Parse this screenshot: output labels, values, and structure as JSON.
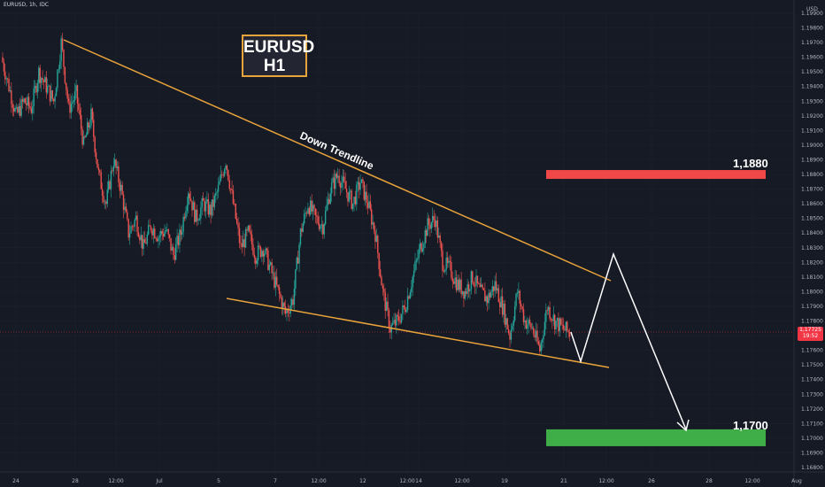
{
  "header": {
    "symbol_line": "EURUSD, 1h, IDC"
  },
  "title_box": {
    "line1": "EURUSD",
    "line2": "H1"
  },
  "currency_label": "USD",
  "trendline_label": "Down Trendline",
  "levels": {
    "resistance": {
      "label": "1,1880",
      "price": 1.188,
      "color": "#f04848"
    },
    "support": {
      "label": "1,1700",
      "price": 1.17,
      "color": "#3fae49"
    }
  },
  "current_price": {
    "line1": "1,17725",
    "line2": "19:52",
    "price": 1.17725,
    "color": "#f23645"
  },
  "colors": {
    "background": "#161a25",
    "up": "#26a69a",
    "down": "#ef5350",
    "trendline": "#e8a33a",
    "projection": "#ffffff"
  },
  "chart_data": {
    "type": "line",
    "title": "EURUSD H1",
    "ylim": [
      1.168,
      1.2
    ],
    "y_ticks": [
      "1.16800",
      "1.16900",
      "1.17000",
      "1.17100",
      "1.17200",
      "1.17300",
      "1.17400",
      "1.17500",
      "1.17600",
      "1.17700",
      "1.17800",
      "1.17900",
      "1.18000",
      "1.18100",
      "1.18200",
      "1.18300",
      "1.18400",
      "1.18500",
      "1.18600",
      "1.18700",
      "1.18800",
      "1.18900",
      "1.19000",
      "1.19100",
      "1.19200",
      "1.19300",
      "1.19400",
      "1.19500",
      "1.19600",
      "1.19700",
      "1.19800",
      "1.19900"
    ],
    "x_ticks": [
      "24",
      "28",
      "12:00",
      "Jul",
      "5",
      "7",
      "12:00",
      "12",
      "12:00",
      "14",
      "12:00",
      "19",
      "21",
      "12:00",
      "26",
      "28",
      "12:00",
      "Aug"
    ],
    "series": [
      {
        "values": [
          1.196,
          1.194,
          1.192,
          1.193,
          1.1925,
          1.195,
          1.194,
          1.193,
          1.197,
          1.1925,
          1.1935,
          1.19,
          1.192,
          1.188,
          1.186,
          1.189,
          1.187,
          1.184,
          1.185,
          1.183,
          1.1845,
          1.1838,
          1.1842,
          1.1825,
          1.184,
          1.187,
          1.185,
          1.186,
          1.1855,
          1.187,
          1.189,
          1.186,
          1.183,
          1.184,
          1.1825,
          1.183,
          1.1815,
          1.18,
          1.1785,
          1.1795,
          1.184,
          1.186,
          1.185,
          1.1845,
          1.187,
          1.188,
          1.187,
          1.186,
          1.1875,
          1.186,
          1.184,
          1.18,
          1.1775,
          1.178,
          1.179,
          1.181,
          1.183,
          1.1845,
          1.185,
          1.182,
          1.1815,
          1.1805,
          1.18,
          1.181,
          1.18,
          1.1795,
          1.1805,
          1.179,
          1.177,
          1.18,
          1.178,
          1.1775,
          1.176,
          1.179,
          1.178,
          1.1775,
          1.1772
        ]
      }
    ],
    "annotations": [
      "Down Trendline",
      "1,1880",
      "1,1700"
    ]
  }
}
